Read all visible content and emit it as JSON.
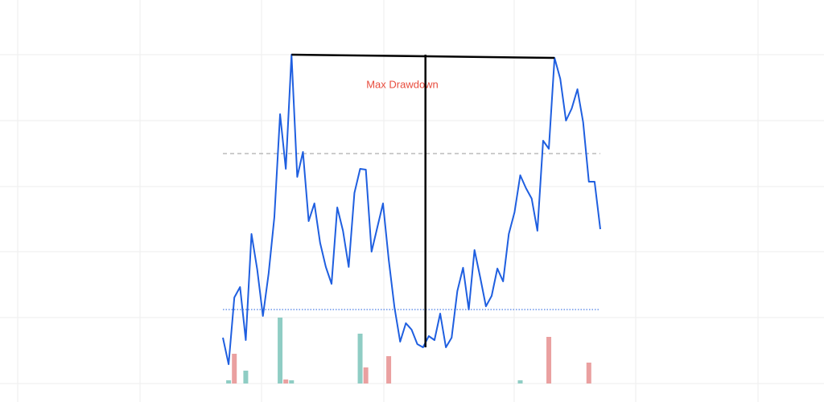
{
  "chart_data": {
    "type": "line",
    "annotation": "Max Drawdown",
    "ylim": [
      0,
      500
    ],
    "color": "#1f5fe0",
    "values": [
      80,
      47,
      130,
      143,
      77,
      209,
      165,
      107,
      160,
      230,
      358,
      290,
      432,
      280,
      311,
      225,
      247,
      198,
      168,
      147,
      242,
      213,
      168,
      260,
      290,
      289,
      187,
      217,
      247,
      177,
      118,
      75,
      98,
      90,
      72,
      68,
      82,
      77,
      110,
      68,
      80,
      138,
      167,
      115,
      189,
      155,
      119,
      132,
      166,
      150,
      209,
      236,
      282,
      266,
      253,
      213,
      325,
      315,
      428,
      402,
      350,
      365,
      389,
      348,
      274,
      274,
      215
    ],
    "reference_lines": [
      {
        "value": 309,
        "color": "#999999",
        "style": "dashed"
      },
      {
        "value": 115,
        "color": "#1f5fe0",
        "style": "dotted"
      }
    ],
    "volume": {
      "ylim": [
        0,
        500
      ],
      "series": [
        {
          "color": "#8fcdc4",
          "values": [
            null,
            4,
            null,
            null,
            16,
            null,
            null,
            null,
            null,
            null,
            82,
            null,
            4,
            null,
            null,
            null,
            null,
            null,
            null,
            null,
            null,
            null,
            null,
            null,
            62,
            null,
            null,
            null,
            null,
            null,
            null,
            null,
            null,
            null,
            null,
            null,
            null,
            null,
            null,
            null,
            null,
            null,
            null,
            null,
            null,
            null,
            null,
            null,
            null,
            null,
            null,
            null,
            4,
            null,
            null,
            null,
            null,
            null,
            null,
            null,
            null,
            null,
            null,
            null,
            null,
            null,
            null
          ]
        },
        {
          "color": "#eaa0a0",
          "values": [
            null,
            null,
            37,
            null,
            null,
            null,
            null,
            null,
            null,
            null,
            null,
            5,
            null,
            null,
            null,
            null,
            null,
            null,
            null,
            null,
            null,
            null,
            null,
            null,
            null,
            20,
            null,
            null,
            null,
            34,
            null,
            null,
            null,
            null,
            null,
            null,
            null,
            null,
            null,
            null,
            null,
            null,
            null,
            null,
            null,
            null,
            null,
            null,
            null,
            null,
            null,
            null,
            null,
            null,
            null,
            null,
            null,
            58,
            null,
            null,
            null,
            null,
            null,
            null,
            26,
            null,
            null
          ]
        }
      ]
    }
  }
}
